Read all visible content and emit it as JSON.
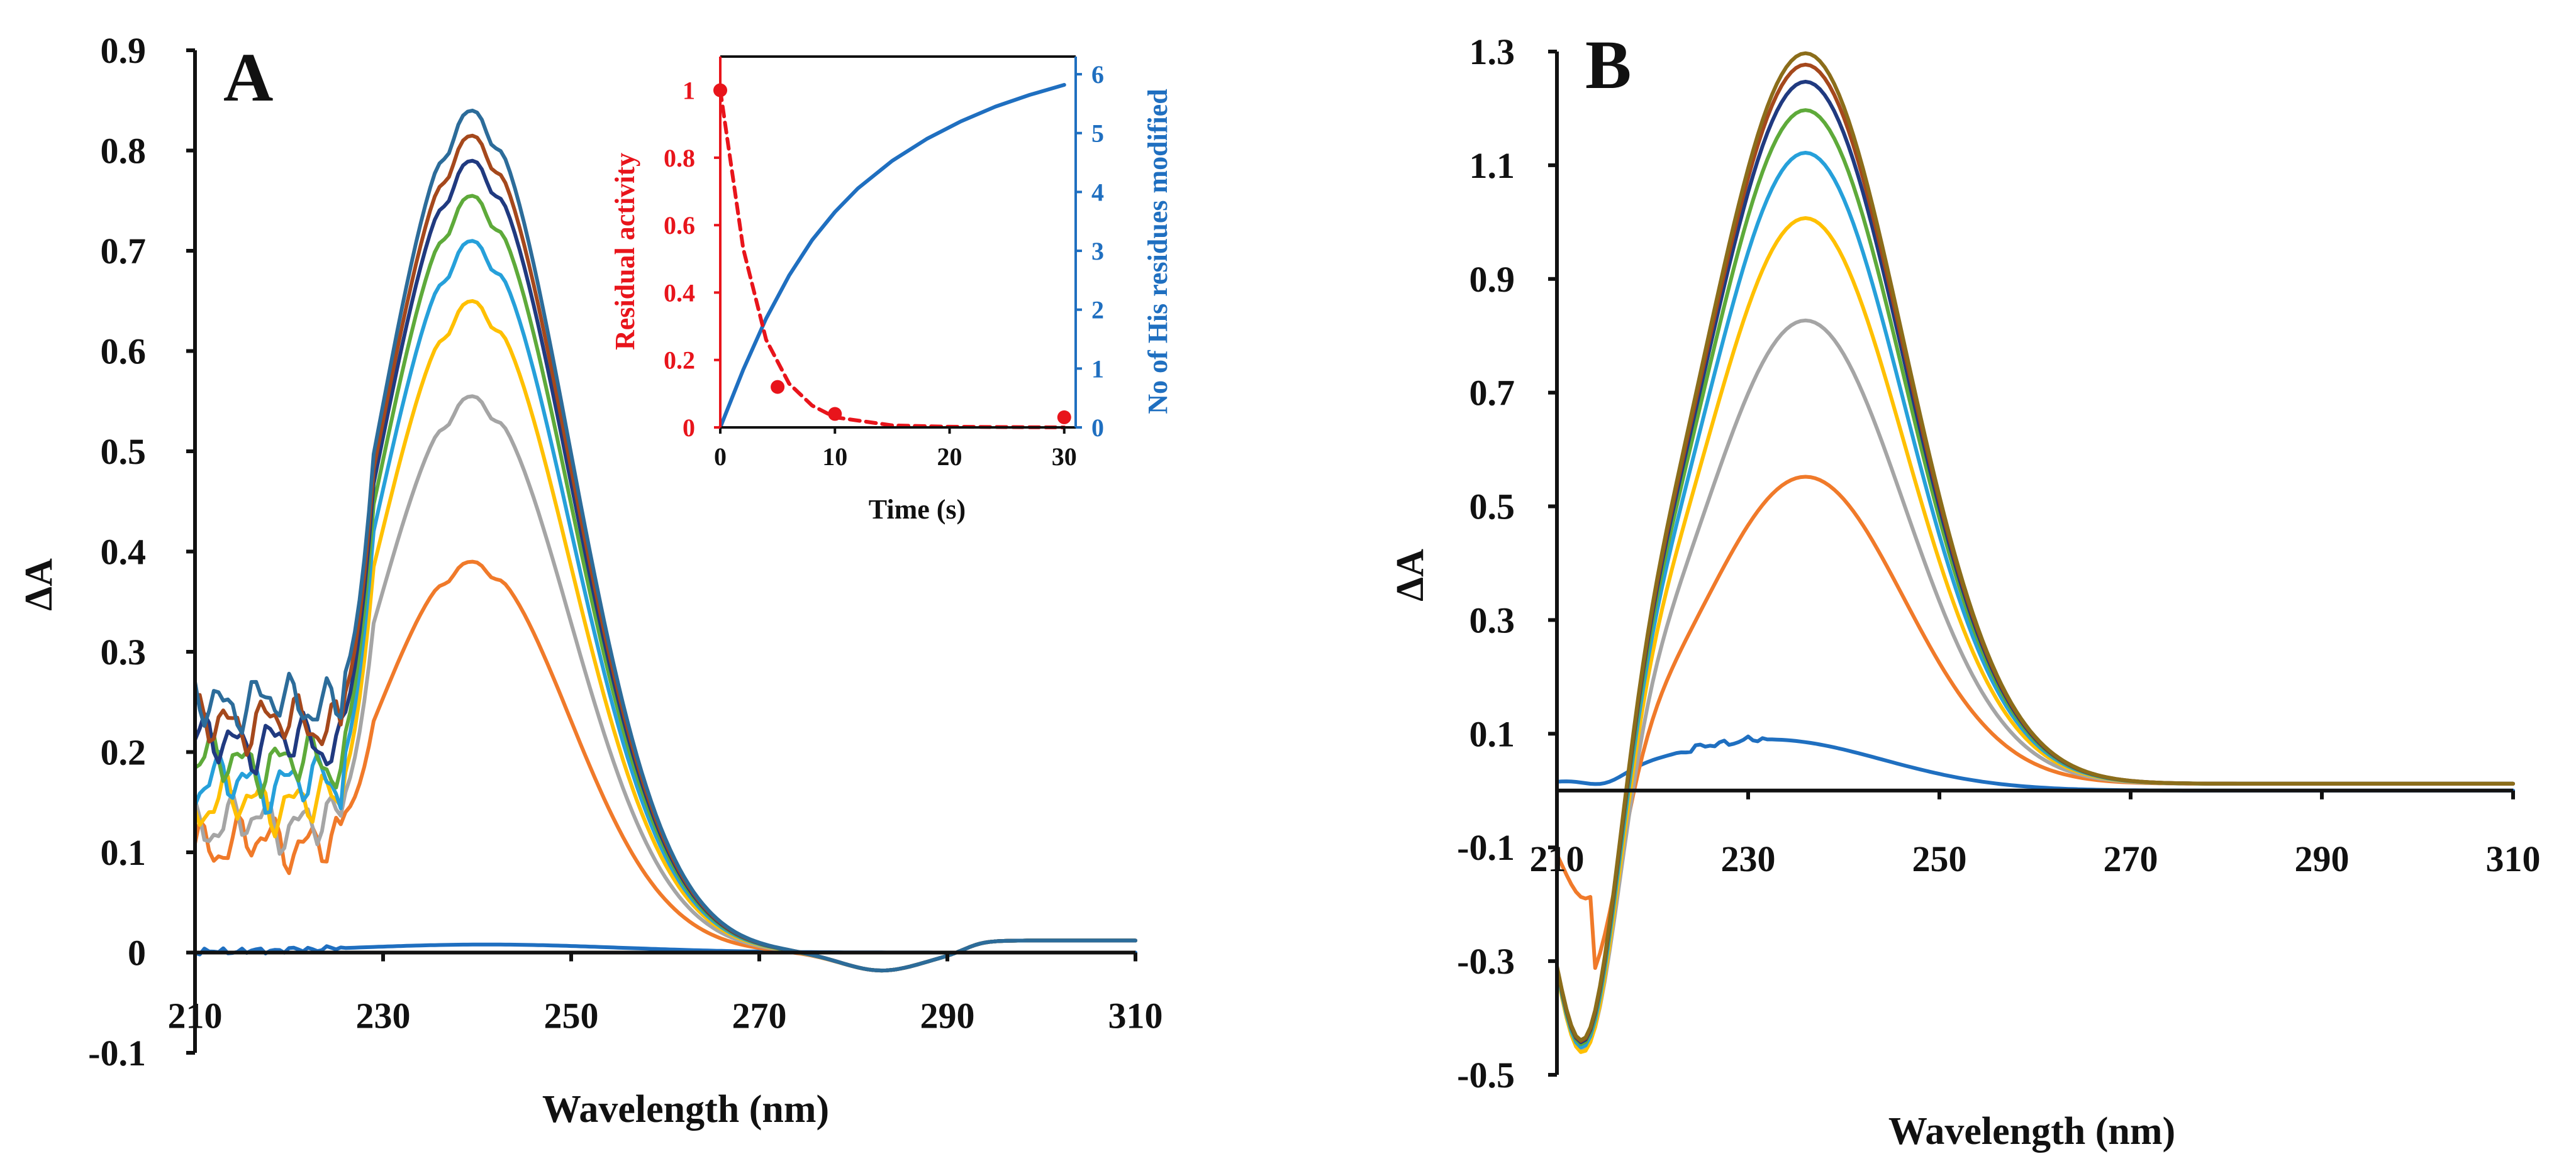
{
  "chart_data": [
    {
      "panel": "A",
      "type": "line",
      "xlabel": "Wavelength (nm)",
      "ylabel": "ΔA",
      "xlim": [
        210,
        310
      ],
      "ylim": [
        -0.1,
        0.9
      ],
      "xticks": [
        210,
        230,
        250,
        270,
        290,
        310
      ],
      "yticks": [
        -0.1,
        0,
        0.1,
        0.2,
        0.3,
        0.4,
        0.5,
        0.6,
        0.7,
        0.8,
        0.9
      ],
      "ytick_labels": [
        "-0.1",
        "0",
        "0.1",
        "0.2",
        "0.3",
        "0.4",
        "0.5",
        "0.6",
        "0.7",
        "0.8",
        "0.9"
      ],
      "series": [
        {
          "name": "spectrum-1",
          "color": "#1f6fc0",
          "peak": 0.008
        },
        {
          "name": "spectrum-2",
          "color": "#f07a2a",
          "peak": 0.39
        },
        {
          "name": "spectrum-3",
          "color": "#a5a5a5",
          "peak": 0.555
        },
        {
          "name": "spectrum-4",
          "color": "#ffc000",
          "peak": 0.65
        },
        {
          "name": "spectrum-5",
          "color": "#26a0da",
          "peak": 0.71
        },
        {
          "name": "spectrum-6",
          "color": "#5eaa3a",
          "peak": 0.755
        },
        {
          "name": "spectrum-7",
          "color": "#203a80",
          "peak": 0.79
        },
        {
          "name": "spectrum-8",
          "color": "#a5481c",
          "peak": 0.815
        },
        {
          "name": "spectrum-9",
          "color": "#2c6c9a",
          "peak": 0.84
        }
      ],
      "inset": {
        "type": "line",
        "xlabel": "Time (s)",
        "ylabel_left": "Residual activity",
        "ylabel_right": "No of His residues modified",
        "xlim": [
          0,
          31
        ],
        "xticks": [
          0,
          10,
          20,
          30
        ],
        "ylim_left": [
          0,
          1.1
        ],
        "yticks_left": [
          0,
          0.2,
          0.4,
          0.6,
          0.8,
          1
        ],
        "ytick_labels_left": [
          "0",
          "0.2",
          "0.4",
          "0.6",
          "0.8",
          "1"
        ],
        "ylim_right": [
          0,
          6.3
        ],
        "yticks_right": [
          0,
          1,
          2,
          3,
          4,
          5,
          6
        ],
        "left_color": "#e8141b",
        "right_color": "#1f6fc0",
        "residual_activity_points": {
          "x": [
            0,
            5,
            10,
            30
          ],
          "y": [
            1.0,
            0.12,
            0.04,
            0.03
          ]
        },
        "residual_activity_fit": {
          "x": [
            0,
            2,
            4,
            6,
            8,
            10,
            15,
            20,
            25,
            30
          ],
          "y": [
            1.0,
            0.53,
            0.26,
            0.13,
            0.065,
            0.03,
            0.006,
            0.002,
            0.001,
            0.0
          ]
        },
        "his_modified": {
          "x": [
            0,
            2,
            4,
            6,
            8,
            10,
            12,
            15,
            18,
            21,
            24,
            27,
            30
          ],
          "y": [
            0,
            0.98,
            1.85,
            2.58,
            3.18,
            3.66,
            4.06,
            4.53,
            4.9,
            5.2,
            5.45,
            5.65,
            5.82
          ]
        }
      }
    },
    {
      "panel": "B",
      "type": "line",
      "xlabel": "Wavelength (nm)",
      "ylabel": "ΔA",
      "xlim": [
        210,
        310
      ],
      "ylim": [
        -0.5,
        1.3
      ],
      "xticks": [
        210,
        230,
        250,
        270,
        290,
        310
      ],
      "yticks": [
        -0.5,
        -0.3,
        -0.1,
        0.1,
        0.3,
        0.5,
        0.7,
        0.9,
        1.1,
        1.3
      ],
      "ytick_labels": [
        "-0.5",
        "-0.3",
        "-0.1",
        "0.1",
        "0.3",
        "0.5",
        "0.7",
        "0.9",
        "1.1",
        "1.3"
      ],
      "series": [
        {
          "name": "spectrum-1",
          "color": "#1f6fc0",
          "peak": 0.085
        },
        {
          "name": "spectrum-2",
          "color": "#f07a2a",
          "peak": 0.54
        },
        {
          "name": "spectrum-3",
          "color": "#a5a5a5",
          "peak": 0.815
        },
        {
          "name": "spectrum-4",
          "color": "#ffc000",
          "peak": 0.995
        },
        {
          "name": "spectrum-5",
          "color": "#26a0da",
          "peak": 1.11
        },
        {
          "name": "spectrum-6",
          "color": "#5eaa3a",
          "peak": 1.185
        },
        {
          "name": "spectrum-7",
          "color": "#203a80",
          "peak": 1.235
        },
        {
          "name": "spectrum-8",
          "color": "#a5481c",
          "peak": 1.265
        },
        {
          "name": "spectrum-9",
          "color": "#8b6d1a",
          "peak": 1.285
        }
      ]
    }
  ]
}
